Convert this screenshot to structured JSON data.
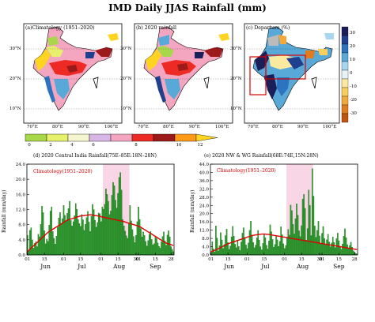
{
  "title": "IMD Daily JJAS Rainfall (mm)",
  "maps": {
    "a_title": "(a)Climatology (1951–2020)",
    "b_title": "(b) 2020 rainfall",
    "c_title": "(c) Departure (%)",
    "lat_labels": [
      "30°N",
      "20°N",
      "10°N"
    ],
    "lon_labels": [
      "70°E",
      "80°E",
      "90°E",
      "100°E"
    ],
    "cbar_bottom_labels": [
      "0",
      "2",
      "4",
      "6",
      "8",
      "10",
      "12"
    ],
    "cbar_bottom_colors": [
      "#a8d84a",
      "#e7f06a",
      "#f5f5d0",
      "#d8b6e6",
      "#f4a6c0",
      "#ee2a24",
      "#9c1a1a",
      "#ff9a16",
      "#ffd420"
    ],
    "cbar_side_labels": [
      "30",
      "20",
      "10",
      "0",
      "-10",
      "-20",
      "-30"
    ],
    "cbar_side_colors": [
      "#1a1f5a",
      "#1f3f8f",
      "#2d74c0",
      "#58a9d8",
      "#a7d7ef",
      "#e6f3f6",
      "#fbe9a0",
      "#f9d05e",
      "#f2a93a",
      "#e07c1e",
      "#c05512"
    ]
  },
  "chart_data": [
    {
      "type": "bar",
      "title": "(d) 2020 Central India Rainfall(75E–85E:18N–28N)",
      "ylabel": "Rainfall (mm/day)",
      "ylim": [
        0,
        24
      ],
      "yticks": [
        "0.0",
        "4.0",
        "8.0",
        "12.0",
        "16.0",
        "20.0",
        "24.0"
      ],
      "xtick_labels": [
        "01",
        "15",
        "01",
        "15",
        "01",
        "15",
        "30",
        "01",
        "15",
        "28"
      ],
      "month_labels": [
        "Jun",
        "Jul",
        "Aug",
        "Sep"
      ],
      "highlight": [
        63,
        85
      ],
      "series": [
        {
          "name": "Climatology(1951–2020)",
          "type": "line",
          "values": [
            0.8,
            1.2,
            1.5,
            1.8,
            2.1,
            2.4,
            2.7,
            3.0,
            3.3,
            3.6,
            3.9,
            4.2,
            4.5,
            4.8,
            5.1,
            5.4,
            5.7,
            6.0,
            6.2,
            6.4,
            6.6,
            6.8,
            7.0,
            7.2,
            7.4,
            7.6,
            7.8,
            8.0,
            8.2,
            8.4,
            8.6,
            8.8,
            9.0,
            9.2,
            9.3,
            9.4,
            9.5,
            9.6,
            9.7,
            9.8,
            9.9,
            10.0,
            10.1,
            10.2,
            10.3,
            10.3,
            10.4,
            10.4,
            10.5,
            10.5,
            10.5,
            10.6,
            10.6,
            10.6,
            10.5,
            10.5,
            10.4,
            10.4,
            10.3,
            10.3,
            10.2,
            10.1,
            10.0,
            10.0,
            9.9,
            9.8,
            9.8,
            9.7,
            9.6,
            9.6,
            9.5,
            9.4,
            9.4,
            9.3,
            9.2,
            9.2,
            9.1,
            9.0,
            9.0,
            8.9,
            8.8,
            8.7,
            8.6,
            8.5,
            8.4,
            8.3,
            8.2,
            8.1,
            8.0,
            7.9,
            7.8,
            7.7,
            7.6,
            7.5,
            7.3,
            7.1,
            6.9,
            6.7,
            6.5,
            6.3,
            6.1,
            5.9,
            5.7,
            5.5,
            5.3,
            5.1,
            4.9,
            4.7,
            4.5,
            4.3,
            4.1,
            3.9,
            3.7,
            3.5,
            3.3,
            3.1,
            3.0,
            2.9,
            2.8,
            2.7,
            2.6,
            2.5
          ]
        },
        {
          "name": "2020 rainfall",
          "type": "bar",
          "values": [
            5.2,
            1.0,
            6.5,
            7.2,
            4.0,
            1.8,
            3.1,
            3.5,
            2.2,
            5.5,
            4.8,
            8.1,
            12.9,
            11.2,
            6.4,
            3.0,
            4.2,
            3.6,
            7.9,
            11.6,
            12.7,
            6.2,
            4.4,
            2.9,
            5.0,
            7.3,
            9.8,
            11.2,
            8.4,
            9.6,
            13.1,
            10.5,
            8.9,
            11.0,
            12.3,
            14.2,
            9.1,
            7.7,
            8.8,
            10.4,
            13.6,
            12.1,
            9.4,
            8.3,
            7.6,
            10.7,
            9.3,
            6.5,
            8.1,
            9.9,
            11.5,
            8.7,
            6.2,
            10.2,
            13.4,
            12.0,
            9.2,
            7.4,
            8.6,
            11.1,
            10.9,
            8.8,
            12.7,
            12.1,
            13.4,
            17.5,
            16.0,
            14.2,
            10.7,
            11.6,
            15.8,
            19.2,
            18.3,
            14.5,
            12.4,
            16.3,
            20.5,
            21.8,
            17.2,
            9.4,
            7.7,
            6.3,
            5.1,
            4.4,
            8.2,
            13.1,
            9.0,
            6.7,
            4.9,
            3.3,
            5.2,
            8.8,
            12.7,
            9.4,
            7.0,
            4.8,
            6.1,
            5.2,
            3.6,
            2.4,
            3.8,
            5.5,
            6.2,
            4.1,
            2.7,
            3.0,
            5.0,
            4.4,
            3.2,
            2.3,
            1.8,
            3.5,
            4.9,
            6.1,
            3.7,
            2.6,
            5.3,
            6.4,
            4.8,
            2.2,
            1.5,
            0.9
          ]
        }
      ]
    },
    {
      "type": "bar",
      "title": "(e) 2020 NW & WG Rainfall(68E:74E,15N:28N)",
      "ylabel": "Rainfall (mm/day)",
      "ylim": [
        0,
        44
      ],
      "yticks": [
        "0.0",
        "4.0",
        "8.0",
        "12.0",
        "16.0",
        "20.0",
        "24.0",
        "28.0",
        "32.0",
        "36.0",
        "40.0",
        "44.0"
      ],
      "xtick_labels": [
        "01",
        "15",
        "01",
        "15",
        "01",
        "15",
        "30",
        "01",
        "15",
        "28"
      ],
      "month_labels": [
        "Jun",
        "Jul",
        "Aug",
        "Sep"
      ],
      "highlight": [
        63,
        85
      ],
      "series": [
        {
          "name": "Climatology(1951–2020)",
          "type": "line",
          "values": [
            1.5,
            1.8,
            2.0,
            2.2,
            2.5,
            2.8,
            3.0,
            3.3,
            3.6,
            3.9,
            4.2,
            4.5,
            4.8,
            5.1,
            5.4,
            5.6,
            5.8,
            6.0,
            6.2,
            6.4,
            6.6,
            6.8,
            7.0,
            7.2,
            7.4,
            7.6,
            7.8,
            8.0,
            8.2,
            8.4,
            8.6,
            8.8,
            9.0,
            9.2,
            9.4,
            9.5,
            9.6,
            9.7,
            9.8,
            9.9,
            10.0,
            10.0,
            10.1,
            10.1,
            10.1,
            10.1,
            10.0,
            10.0,
            9.9,
            9.8,
            9.7,
            9.6,
            9.5,
            9.4,
            9.3,
            9.2,
            9.1,
            9.0,
            8.9,
            8.8,
            8.7,
            8.6,
            8.5,
            8.4,
            8.3,
            8.2,
            8.1,
            8.0,
            7.9,
            7.8,
            7.7,
            7.6,
            7.5,
            7.4,
            7.3,
            7.2,
            7.1,
            7.0,
            6.9,
            6.8,
            6.7,
            6.6,
            6.5,
            6.4,
            6.3,
            6.2,
            6.1,
            6.0,
            5.9,
            5.8,
            5.7,
            5.6,
            5.5,
            5.4,
            5.3,
            5.2,
            5.1,
            5.0,
            4.9,
            4.8,
            4.7,
            4.6,
            4.5,
            4.4,
            4.3,
            4.2,
            4.1,
            4.0,
            3.9,
            3.8,
            3.7,
            3.6,
            3.5,
            3.4,
            3.3,
            3.2,
            3.1,
            3.0,
            2.9,
            2.8,
            2.7,
            2.6
          ]
        },
        {
          "name": "2020 rainfall",
          "type": "bar",
          "values": [
            1.2,
            6.4,
            3.0,
            1.5,
            14.1,
            8.2,
            2.0,
            4.5,
            10.8,
            7.3,
            3.2,
            5.1,
            9.4,
            12.5,
            6.0,
            2.8,
            4.4,
            8.8,
            13.9,
            9.1,
            5.2,
            3.6,
            7.0,
            4.1,
            2.2,
            6.3,
            10.6,
            13.2,
            8.5,
            4.9,
            3.1,
            5.8,
            12.0,
            16.4,
            9.7,
            6.1,
            3.5,
            4.8,
            8.3,
            11.9,
            7.2,
            4.0,
            2.5,
            5.6,
            10.1,
            8.4,
            4.7,
            2.9,
            6.8,
            14.6,
            11.3,
            7.5,
            3.8,
            5.1,
            9.0,
            7.4,
            4.2,
            6.6,
            13.7,
            9.8,
            5.4,
            3.2,
            4.6,
            8.1,
            12.4,
            9.6,
            24.2,
            21.5,
            14.8,
            10.2,
            17.6,
            24.8,
            19.3,
            11.7,
            8.9,
            14.2,
            27.1,
            29.4,
            22.6,
            7.2,
            12.8,
            31.5,
            24.1,
            9.4,
            41.8,
            28.5,
            14.1,
            8.6,
            11.9,
            16.3,
            9.2,
            5.7,
            10.5,
            13.8,
            8.0,
            5.2,
            7.4,
            10.1,
            6.3,
            4.0,
            5.8,
            8.7,
            6.1,
            3.6,
            7.9,
            10.6,
            6.9,
            4.2,
            2.8,
            5.3,
            9.1,
            12.7,
            8.4,
            5.0,
            3.1,
            4.6,
            6.2,
            3.8,
            2.1,
            1.4,
            0.8,
            0.5
          ]
        }
      ]
    }
  ]
}
